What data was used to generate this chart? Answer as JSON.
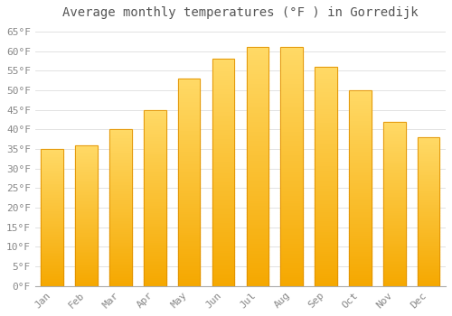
{
  "title": "Average monthly temperatures (°F ) in Gorredijk",
  "months": [
    "Jan",
    "Feb",
    "Mar",
    "Apr",
    "May",
    "Jun",
    "Jul",
    "Aug",
    "Sep",
    "Oct",
    "Nov",
    "Dec"
  ],
  "values": [
    35,
    36,
    40,
    45,
    53,
    58,
    61,
    61,
    56,
    50,
    42,
    38
  ],
  "bar_color_bottom": "#F5A800",
  "bar_color_top": "#FFD966",
  "bar_edge_color": "#E09000",
  "background_color": "#FFFFFF",
  "yticks": [
    0,
    5,
    10,
    15,
    20,
    25,
    30,
    35,
    40,
    45,
    50,
    55,
    60,
    65
  ],
  "ylim": [
    0,
    67
  ],
  "title_fontsize": 10,
  "tick_fontsize": 8,
  "grid_color": "#DDDDDD"
}
